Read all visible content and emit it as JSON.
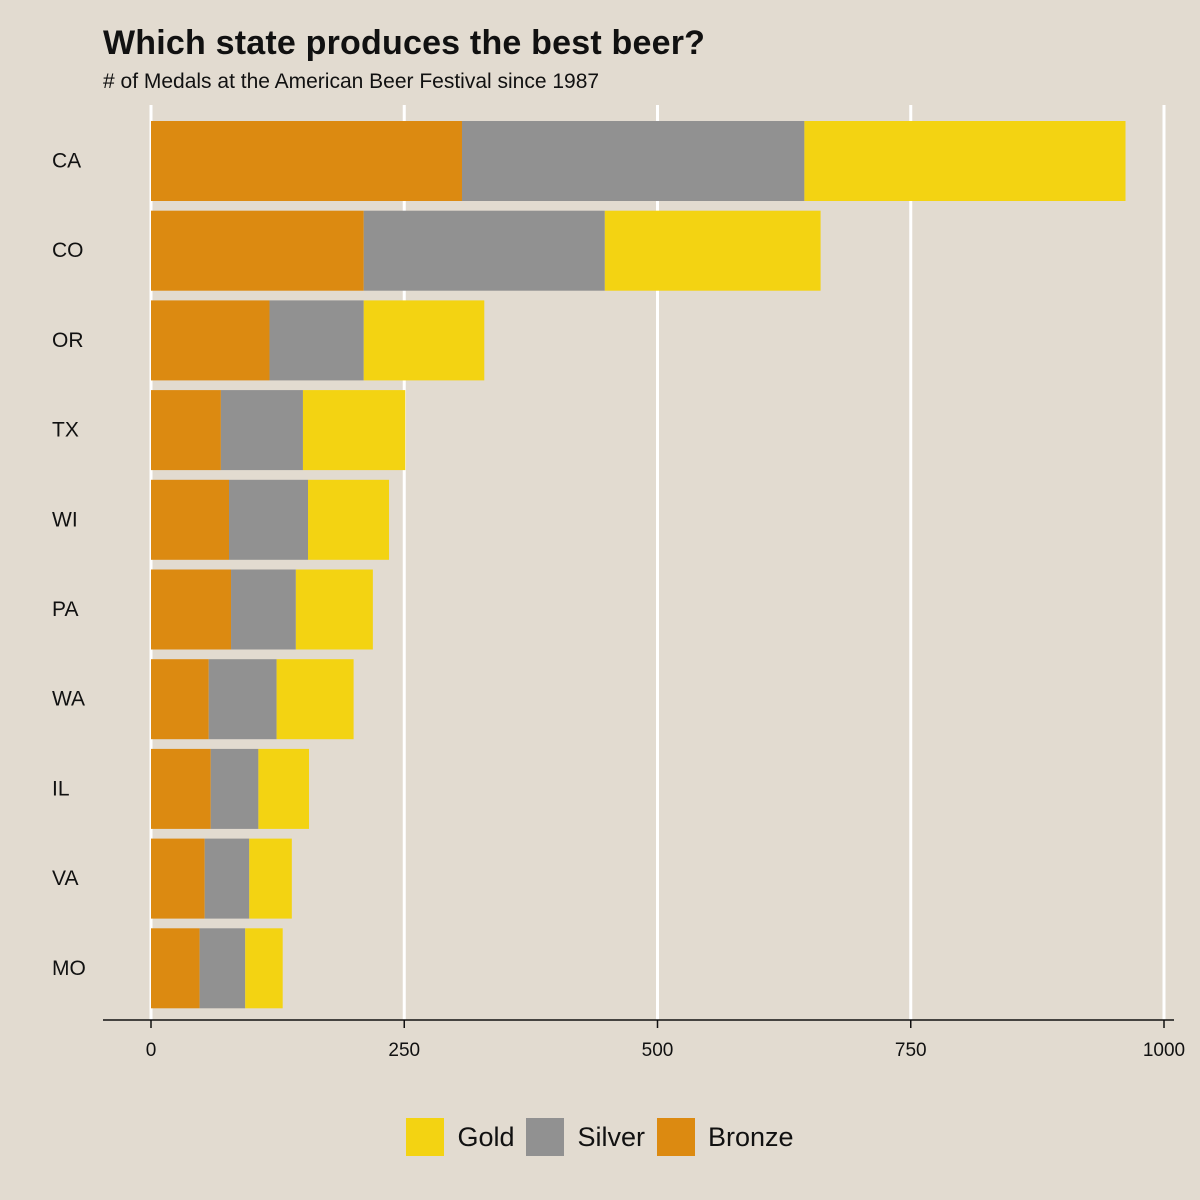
{
  "chart_data": {
    "type": "bar",
    "orientation": "horizontal",
    "stacked": true,
    "title": "Which state produces the best beer?",
    "subtitle": "# of Medals at the American Beer Festival since 1987",
    "xlabel": "",
    "ylabel": "",
    "xlim": [
      0,
      1000
    ],
    "x_ticks": [
      0,
      250,
      500,
      750,
      1000
    ],
    "categories": [
      "CA",
      "CO",
      "OR",
      "TX",
      "WI",
      "PA",
      "WA",
      "IL",
      "VA",
      "MO"
    ],
    "series": [
      {
        "name": "Bronze",
        "color": "#dc8a11",
        "values": [
          307,
          210,
          117,
          69,
          77,
          79,
          57,
          59,
          53,
          48
        ]
      },
      {
        "name": "Silver",
        "color": "#919191",
        "values": [
          338,
          238,
          93,
          81,
          78,
          64,
          67,
          47,
          44,
          45
        ]
      },
      {
        "name": "Gold",
        "color": "#f3d312",
        "values": [
          317,
          213,
          119,
          101,
          80,
          76,
          76,
          50,
          42,
          37
        ]
      }
    ],
    "legend": {
      "position": "bottom",
      "order": [
        "Gold",
        "Silver",
        "Bronze"
      ]
    },
    "grid": {
      "vertical_major": true,
      "color": "#ffffff"
    }
  }
}
